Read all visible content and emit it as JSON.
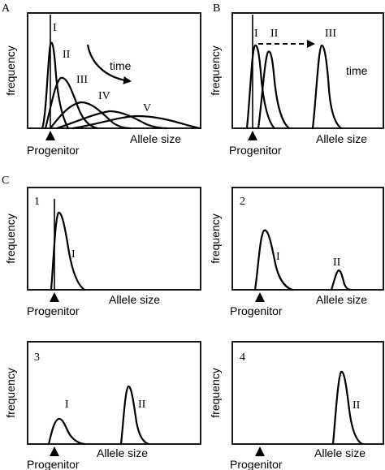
{
  "panelA": {
    "letter": "A",
    "ylabel": "frequency",
    "xlabel": "Allele size",
    "progenitor": "Progenitor",
    "time_label": "time",
    "peak_labels": [
      "I",
      "II",
      "III",
      "IV",
      "V"
    ]
  },
  "panelB": {
    "letter": "B",
    "ylabel": "frequency",
    "xlabel": "Allele size",
    "progenitor": "Progenitor",
    "time_label": "time",
    "peak_labels": [
      "I",
      "II",
      "III"
    ]
  },
  "panelC": {
    "letter": "C",
    "subpanels": [
      {
        "number": "1",
        "ylabel": "frequency",
        "xlabel": "Allele size",
        "progenitor": "Progenitor",
        "peak_labels": [
          "I"
        ]
      },
      {
        "number": "2",
        "ylabel": "frequency",
        "xlabel": "Allele size",
        "progenitor": "Progenitor",
        "peak_labels": [
          "I",
          "II"
        ]
      },
      {
        "number": "3",
        "ylabel": "frequency",
        "xlabel": "Allele size",
        "progenitor": "Progenitor",
        "peak_labels": [
          "I",
          "II"
        ]
      },
      {
        "number": "4",
        "ylabel": "frequency",
        "xlabel": "Allele size",
        "progenitor": "Progenitor",
        "peak_labels": [
          "II"
        ]
      }
    ]
  }
}
